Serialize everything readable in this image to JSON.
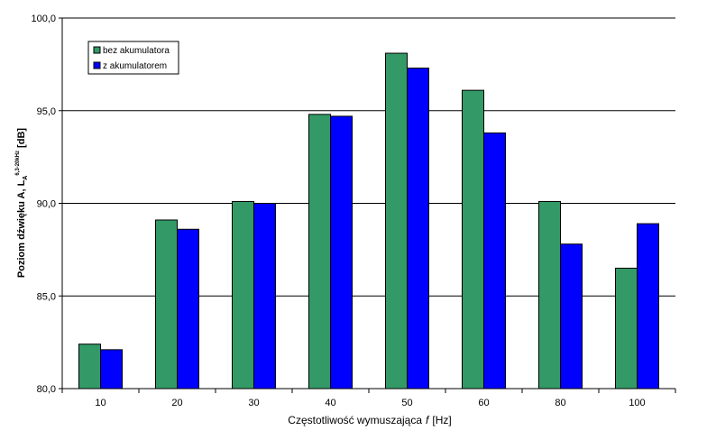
{
  "chart_data": {
    "type": "bar",
    "categories": [
      "10",
      "20",
      "30",
      "40",
      "50",
      "60",
      "80",
      "100"
    ],
    "series": [
      {
        "name": "bez akumulatora",
        "color": "#339966",
        "values": [
          82.4,
          89.1,
          90.1,
          94.8,
          98.1,
          96.1,
          90.1,
          86.5
        ]
      },
      {
        "name": "z akumulatorem",
        "color": "#0000ff",
        "values": [
          82.1,
          88.6,
          90.0,
          94.7,
          97.3,
          93.8,
          87.8,
          88.9
        ]
      }
    ],
    "xlabel": {
      "main": "Częstotliwość wymuszająca",
      "var": "f",
      "unit": "[Hz]"
    },
    "ylabel": {
      "main": "Poziom dźwięku A, L",
      "sub": "A",
      "sup": "6,3-20kHz",
      "unit": "[dB]"
    },
    "ylim": [
      80,
      100
    ],
    "yticks": [
      "80,0",
      "85,0",
      "90,0",
      "95,0",
      "100,0"
    ],
    "grid": true,
    "legend": "top-left"
  }
}
